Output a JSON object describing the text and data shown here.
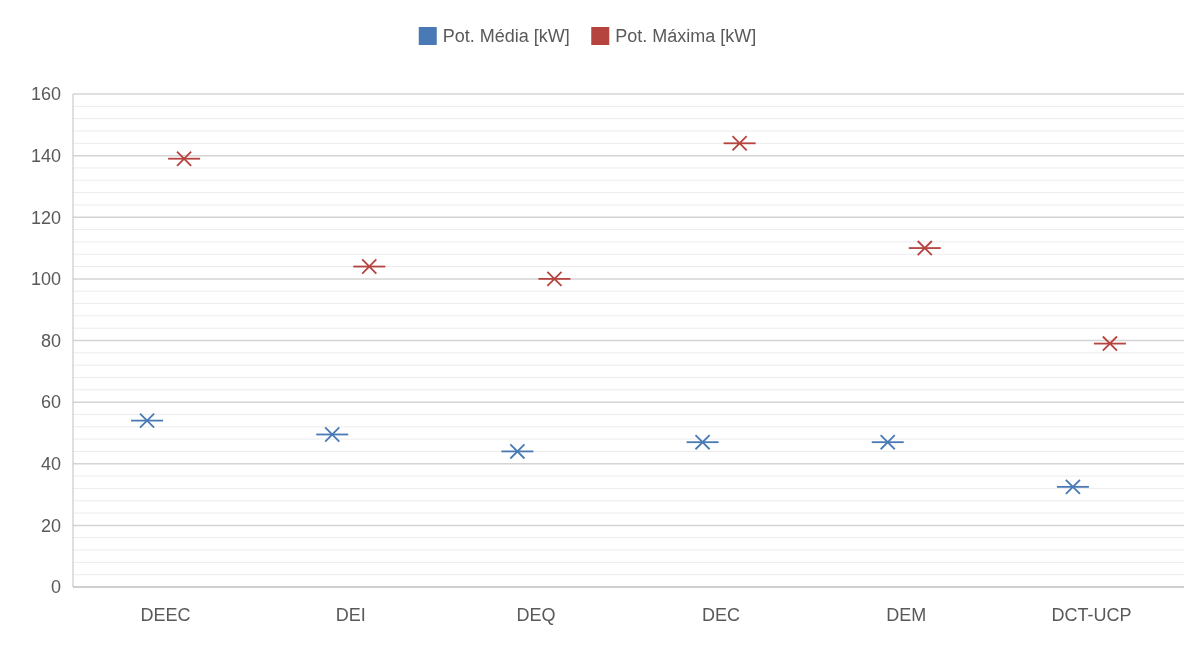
{
  "chart_data": {
    "type": "scatter",
    "categories": [
      "DEEC",
      "DEI",
      "DEQ",
      "DEC",
      "DEM",
      "DCT-UCP"
    ],
    "series": [
      {
        "name": "Pot. Média [kW]",
        "color": "#4a7ab5",
        "values": [
          54,
          49.5,
          44,
          47,
          47,
          32.5
        ]
      },
      {
        "name": "Pot. Máxima [kW]",
        "color": "#b5443f",
        "values": [
          139,
          104,
          100,
          144,
          110,
          79
        ]
      }
    ],
    "ylim": [
      0,
      160
    ],
    "yticks": [
      0,
      {
        "value": 4,
        "label": null
      },
      {
        "value": 8,
        "label": null
      },
      {
        "value": 12,
        "label": null
      },
      {
        "value": 16,
        "label": null
      },
      20,
      {
        "value": 24,
        "label": null
      },
      {
        "value": 28,
        "label": null
      },
      {
        "value": 32,
        "label": null
      },
      {
        "value": 36,
        "label": null
      },
      40,
      {
        "value": 44,
        "label": null
      },
      {
        "value": 48,
        "label": null
      },
      {
        "value": 52,
        "label": null
      },
      {
        "value": 56,
        "label": null
      },
      60,
      {
        "value": 64,
        "label": null
      },
      {
        "value": 68,
        "label": null
      },
      {
        "value": 72,
        "label": null
      },
      {
        "value": 76,
        "label": null
      },
      80,
      {
        "value": 84,
        "label": null
      },
      {
        "value": 88,
        "label": null
      },
      {
        "value": 92,
        "label": null
      },
      {
        "value": 96,
        "label": null
      },
      100,
      {
        "value": 104,
        "label": null
      },
      {
        "value": 108,
        "label": null
      },
      {
        "value": 112,
        "label": null
      },
      {
        "value": 116,
        "label": null
      },
      120,
      {
        "value": 124,
        "label": null
      },
      {
        "value": 128,
        "label": null
      },
      {
        "value": 132,
        "label": null
      },
      {
        "value": 136,
        "label": null
      },
      140,
      {
        "value": 144,
        "label": null
      },
      {
        "value": 148,
        "label": null
      },
      {
        "value": 152,
        "label": null
      },
      {
        "value": 156,
        "label": null
      },
      160
    ],
    "grid": true,
    "legend": "top",
    "marker": "cross"
  }
}
